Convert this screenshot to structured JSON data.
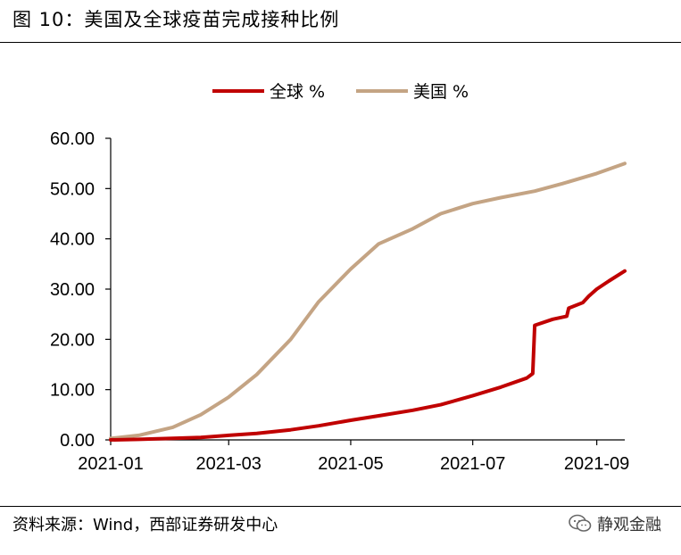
{
  "figure": {
    "title": "图 10：美国及全球疫苗完成接种比例",
    "source": "资料来源：Wind，西部证券研发中心",
    "brand": "静观金融"
  },
  "chart_data": {
    "type": "line",
    "x_unit": "date",
    "xlim": [
      "2021-01-01",
      "2021-09-15"
    ],
    "ylim": [
      0,
      60
    ],
    "y_ticks": [
      0,
      10,
      20,
      30,
      40,
      50,
      60
    ],
    "y_tick_labels": [
      "0.00",
      "10.00",
      "20.00",
      "30.00",
      "40.00",
      "50.00",
      "60.00"
    ],
    "x_ticks": [
      "2021-01-01",
      "2021-03-01",
      "2021-05-01",
      "2021-07-01",
      "2021-09-01"
    ],
    "x_tick_labels": [
      "2021-01",
      "2021-03",
      "2021-05",
      "2021-07",
      "2021-09"
    ],
    "grid": false,
    "legend_position": "top-center",
    "series": [
      {
        "name": "全球 %",
        "color": "#c00000",
        "points": [
          [
            "2021-01-01",
            0.0
          ],
          [
            "2021-01-15",
            0.1
          ],
          [
            "2021-02-01",
            0.3
          ],
          [
            "2021-02-15",
            0.5
          ],
          [
            "2021-03-01",
            0.9
          ],
          [
            "2021-03-15",
            1.3
          ],
          [
            "2021-04-01",
            2.0
          ],
          [
            "2021-04-15",
            2.8
          ],
          [
            "2021-05-01",
            3.9
          ],
          [
            "2021-05-15",
            4.8
          ],
          [
            "2021-06-01",
            5.9
          ],
          [
            "2021-06-15",
            7.0
          ],
          [
            "2021-07-01",
            8.8
          ],
          [
            "2021-07-15",
            10.5
          ],
          [
            "2021-07-28",
            12.3
          ],
          [
            "2021-07-31",
            13.2
          ],
          [
            "2021-08-01",
            22.8
          ],
          [
            "2021-08-10",
            24.0
          ],
          [
            "2021-08-17",
            24.6
          ],
          [
            "2021-08-18",
            26.2
          ],
          [
            "2021-08-25",
            27.3
          ],
          [
            "2021-08-28",
            28.6
          ],
          [
            "2021-09-01",
            30.0
          ],
          [
            "2021-09-07",
            31.6
          ],
          [
            "2021-09-15",
            33.6
          ]
        ]
      },
      {
        "name": "美国 %",
        "color": "#c4a484",
        "points": [
          [
            "2021-01-01",
            0.3
          ],
          [
            "2021-01-15",
            0.9
          ],
          [
            "2021-02-01",
            2.5
          ],
          [
            "2021-02-15",
            5.0
          ],
          [
            "2021-03-01",
            8.5
          ],
          [
            "2021-03-15",
            13.0
          ],
          [
            "2021-04-01",
            20.0
          ],
          [
            "2021-04-15",
            27.5
          ],
          [
            "2021-05-01",
            34.0
          ],
          [
            "2021-05-15",
            39.0
          ],
          [
            "2021-06-01",
            42.0
          ],
          [
            "2021-06-15",
            45.0
          ],
          [
            "2021-07-01",
            47.0
          ],
          [
            "2021-07-15",
            48.2
          ],
          [
            "2021-08-01",
            49.5
          ],
          [
            "2021-08-15",
            51.0
          ],
          [
            "2021-09-01",
            53.0
          ],
          [
            "2021-09-15",
            55.0
          ]
        ]
      }
    ]
  }
}
